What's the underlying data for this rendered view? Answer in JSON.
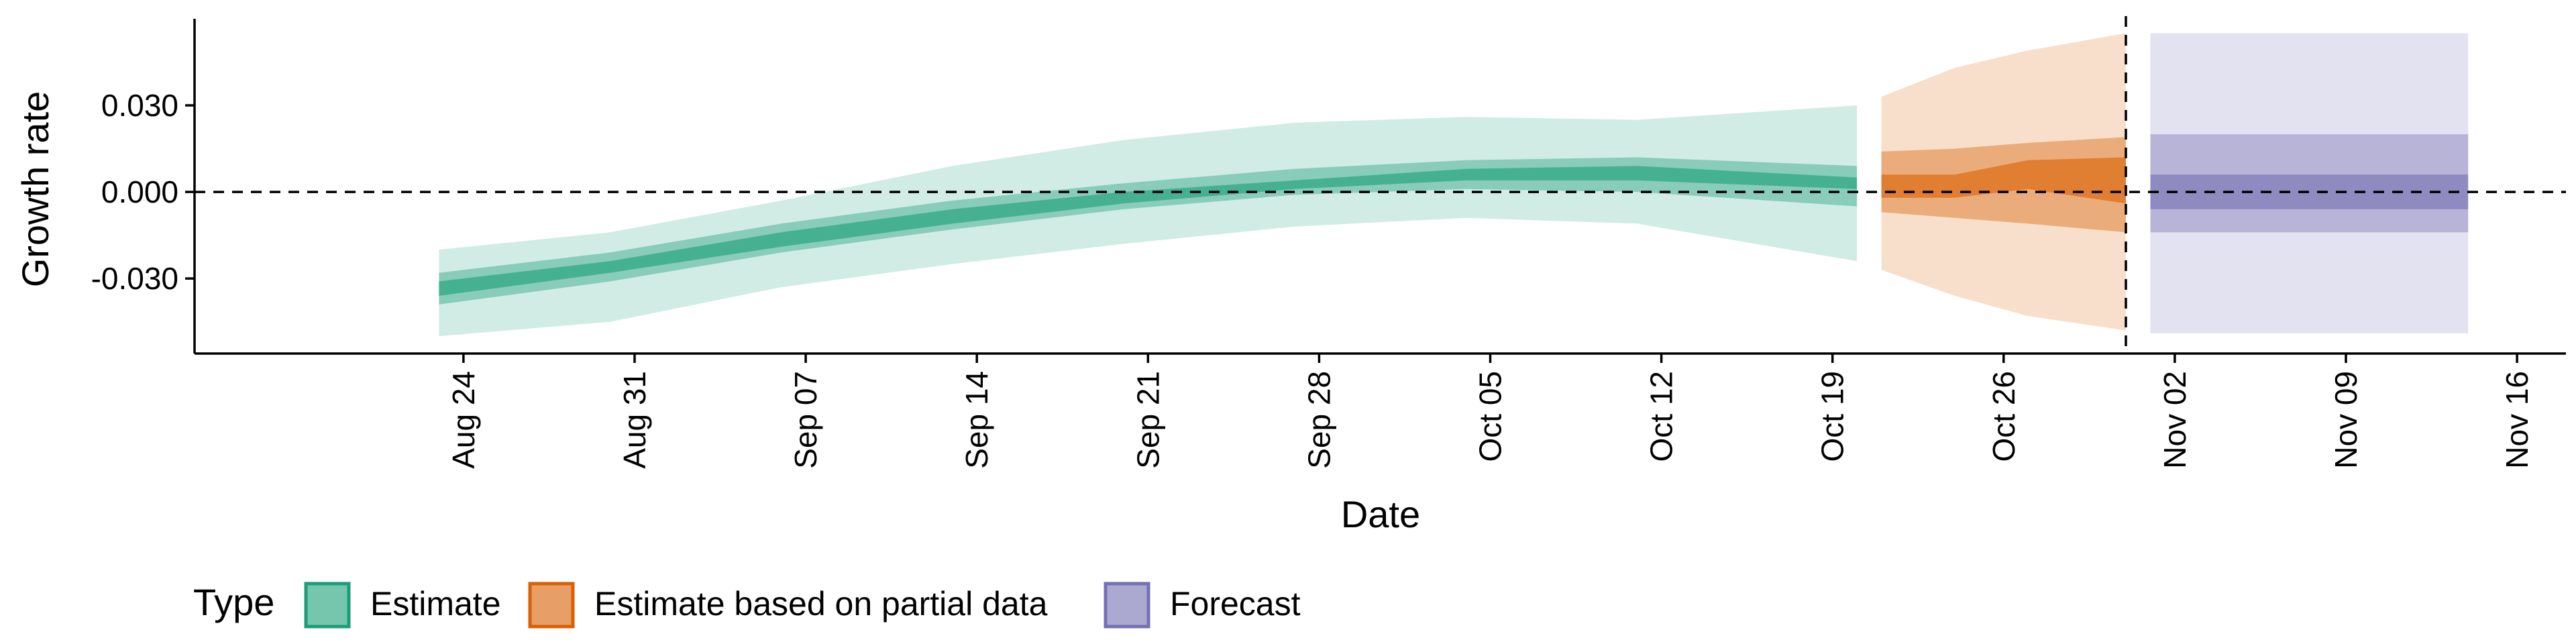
{
  "chart_data": {
    "type": "area",
    "xlabel": "Date",
    "ylabel": "Growth rate",
    "xlim": [
      "2021-08-13",
      "2021-11-18"
    ],
    "ylim": [
      -0.056,
      0.06
    ],
    "yticks": [
      -0.03,
      0.0,
      0.03
    ],
    "ytick_labels": [
      "-0.030",
      "0.000",
      "0.030"
    ],
    "xticks": [
      "2021-08-24",
      "2021-08-31",
      "2021-09-07",
      "2021-09-14",
      "2021-09-21",
      "2021-09-28",
      "2021-10-05",
      "2021-10-12",
      "2021-10-19",
      "2021-10-26",
      "2021-11-02",
      "2021-11-09",
      "2021-11-16"
    ],
    "xtick_labels": [
      "Aug 24",
      "Aug 31",
      "Sep 07",
      "Sep 14",
      "Sep 21",
      "Sep 28",
      "Oct 05",
      "Oct 12",
      "Oct 19",
      "Oct 26",
      "Nov 02",
      "Nov 09",
      "Nov 16"
    ],
    "hline": 0.0,
    "vline": "2021-10-31",
    "grid": false,
    "legend": {
      "title": "Type",
      "position": "bottom-left"
    },
    "series": [
      {
        "name": "Estimate",
        "color": "#1B9E77",
        "bands": [
          {
            "x": [
              "2021-08-23",
              "2021-08-30",
              "2021-09-06",
              "2021-09-13",
              "2021-09-20",
              "2021-09-27",
              "2021-10-04",
              "2021-10-11",
              "2021-10-20"
            ],
            "lower": [
              -0.05,
              -0.045,
              -0.033,
              -0.025,
              -0.018,
              -0.012,
              -0.009,
              -0.011,
              -0.024
            ],
            "upper": [
              -0.02,
              -0.014,
              -0.003,
              0.009,
              0.018,
              0.024,
              0.026,
              0.025,
              0.03
            ]
          },
          {
            "x": [
              "2021-08-23",
              "2021-08-30",
              "2021-09-06",
              "2021-09-13",
              "2021-09-20",
              "2021-09-27",
              "2021-10-04",
              "2021-10-11",
              "2021-10-20"
            ],
            "lower": [
              -0.039,
              -0.031,
              -0.021,
              -0.013,
              -0.006,
              -0.001,
              0.001,
              0.0,
              -0.005
            ],
            "upper": [
              -0.028,
              -0.021,
              -0.011,
              -0.003,
              0.003,
              0.008,
              0.011,
              0.012,
              0.009
            ]
          },
          {
            "x": [
              "2021-08-23",
              "2021-08-30",
              "2021-09-06",
              "2021-09-13",
              "2021-09-20",
              "2021-09-27",
              "2021-10-04",
              "2021-10-11",
              "2021-10-20"
            ],
            "lower": [
              -0.036,
              -0.028,
              -0.019,
              -0.011,
              -0.004,
              0.001,
              0.004,
              0.004,
              0.001
            ],
            "upper": [
              -0.031,
              -0.024,
              -0.014,
              -0.006,
              0.0,
              0.004,
              0.008,
              0.009,
              0.005
            ]
          }
        ]
      },
      {
        "name": "Estimate based on partial data",
        "color": "#D95F02",
        "bands": [
          {
            "x": [
              "2021-10-21",
              "2021-10-24",
              "2021-10-27",
              "2021-10-31"
            ],
            "lower": [
              -0.027,
              -0.036,
              -0.043,
              -0.048
            ],
            "upper": [
              0.033,
              0.043,
              0.049,
              0.055
            ]
          },
          {
            "x": [
              "2021-10-21",
              "2021-10-24",
              "2021-10-27",
              "2021-10-31"
            ],
            "lower": [
              -0.007,
              -0.009,
              -0.011,
              -0.014
            ],
            "upper": [
              0.014,
              0.015,
              0.017,
              0.019
            ]
          },
          {
            "x": [
              "2021-10-21",
              "2021-10-24",
              "2021-10-27",
              "2021-10-31"
            ],
            "lower": [
              -0.002,
              -0.002,
              0.001,
              -0.004
            ],
            "upper": [
              0.006,
              0.006,
              0.011,
              0.012
            ]
          }
        ]
      },
      {
        "name": "Forecast",
        "color": "#7570B3",
        "bands": [
          {
            "x": [
              "2021-11-01",
              "2021-11-14"
            ],
            "lower": [
              -0.049,
              -0.049
            ],
            "upper": [
              0.055,
              0.055
            ]
          },
          {
            "x": [
              "2021-11-01",
              "2021-11-14"
            ],
            "lower": [
              -0.014,
              -0.014
            ],
            "upper": [
              0.02,
              0.02
            ]
          },
          {
            "x": [
              "2021-11-01",
              "2021-11-14"
            ],
            "lower": [
              -0.006,
              -0.006
            ],
            "upper": [
              0.006,
              0.006
            ]
          }
        ]
      }
    ]
  }
}
